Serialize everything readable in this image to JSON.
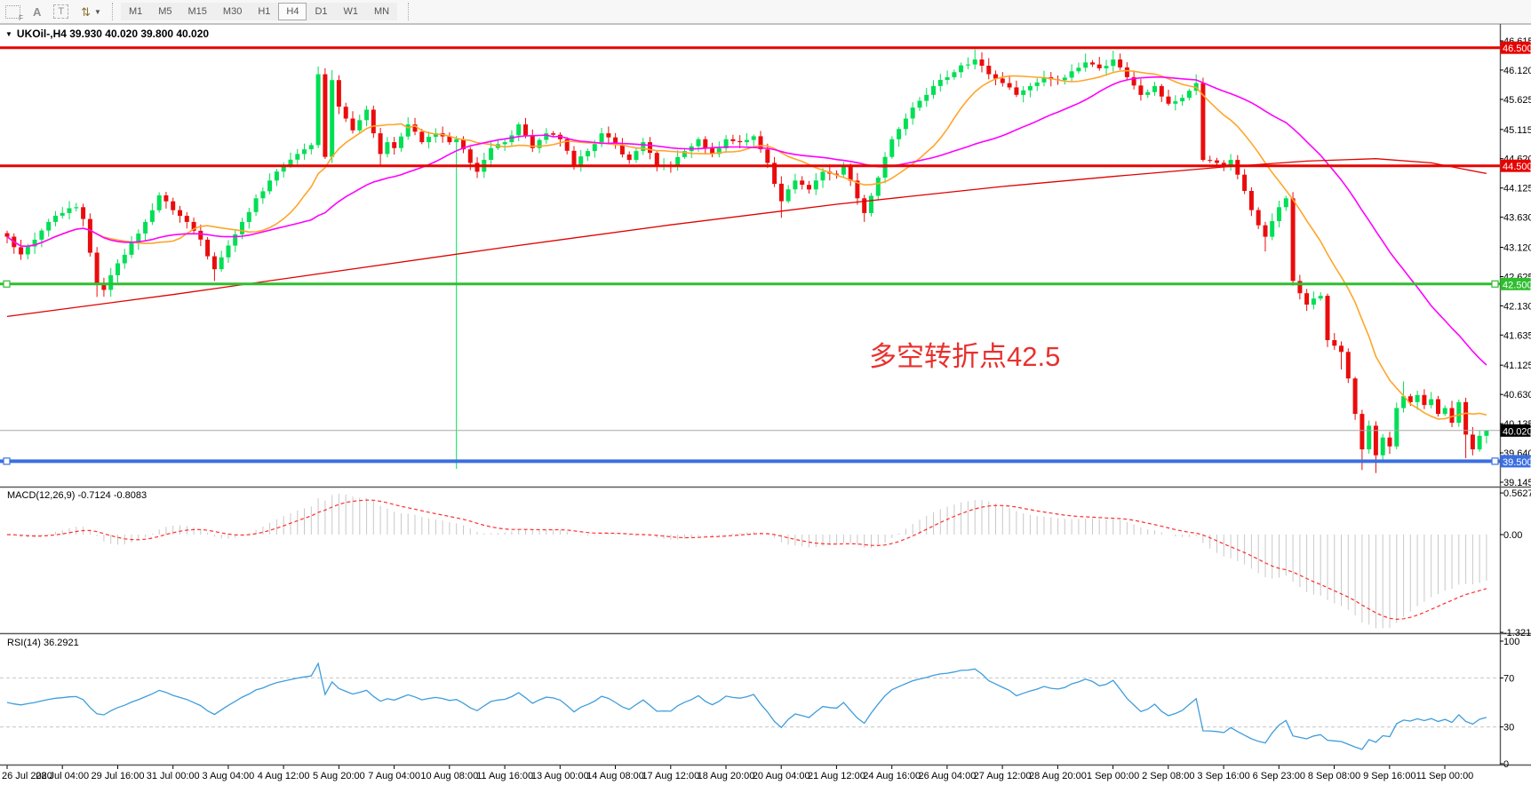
{
  "toolbar": {
    "icons": {
      "grid_f_label": "F",
      "a_label": "A",
      "t_label": "T",
      "arrows_glyph": "⇅",
      "caret": "▼"
    },
    "timeframes": [
      "M1",
      "M5",
      "M15",
      "M30",
      "H1",
      "H4",
      "D1",
      "W1",
      "MN"
    ],
    "active_timeframe": "H4"
  },
  "chart": {
    "collapse_arrow": "▼",
    "title": "UKOil-,H4  39.930 40.020 39.800 40.020",
    "annotation_text": "多空转折点42.5"
  },
  "panels": {
    "macd_label": "MACD(12,26,9) -0.7124 -0.8083",
    "rsi_label": "RSI(14) 36.2921"
  },
  "chart_data": {
    "type": "candlestick",
    "symbol": "UKOil-",
    "timeframe": "H4",
    "last_ohlc": {
      "open": 39.93,
      "high": 40.02,
      "low": 39.8,
      "close": 40.02
    },
    "bars_total": 215,
    "price_ticks": [
      "46.615",
      "46.120",
      "45.625",
      "45.115",
      "44.620",
      "44.125",
      "43.630",
      "43.120",
      "42.625",
      "42.130",
      "41.635",
      "41.125",
      "40.630",
      "40.135",
      "39.640",
      "39.145"
    ],
    "time_ticks": [
      "26 Jul 2020",
      "28 Jul 04:00",
      "29 Jul 16:00",
      "31 Jul 00:00",
      "3 Aug 04:00",
      "4 Aug 12:00",
      "5 Aug 20:00",
      "7 Aug 04:00",
      "10 Aug 08:00",
      "11 Aug 16:00",
      "13 Aug 00:00",
      "14 Aug 08:00",
      "17 Aug 12:00",
      "18 Aug 20:00",
      "20 Aug 04:00",
      "21 Aug 12:00",
      "24 Aug 16:00",
      "26 Aug 04:00",
      "27 Aug 12:00",
      "28 Aug 20:00",
      "1 Sep 00:00",
      "2 Sep 08:00",
      "3 Sep 16:00",
      "6 Sep 23:00",
      "8 Sep 08:00",
      "9 Sep 16:00",
      "11 Sep 00:00"
    ],
    "hlines": [
      {
        "price": 46.5,
        "label": "46.500",
        "color": "#e60400",
        "width": 3,
        "handles": false
      },
      {
        "price": 44.5,
        "label": "44.500",
        "color": "#e60400",
        "width": 3,
        "handles": false
      },
      {
        "price": 42.5,
        "label": "42.500",
        "color": "#2fbe2f",
        "width": 3,
        "handles": true
      },
      {
        "price": 39.5,
        "label": "39.500",
        "color": "#3b6fe0",
        "width": 4,
        "handles": true
      }
    ],
    "price_marker": {
      "price": 40.02,
      "label": "40.020",
      "line_color": "#a8a8a8",
      "badge_bg": "#000000"
    },
    "close_anchors": [
      [
        0,
        43.3
      ],
      [
        2,
        43.0
      ],
      [
        4,
        43.25
      ],
      [
        6,
        43.55
      ],
      [
        8,
        43.7
      ],
      [
        10,
        43.8
      ],
      [
        11,
        43.6
      ],
      [
        13,
        42.5
      ],
      [
        14,
        42.4
      ],
      [
        16,
        42.85
      ],
      [
        18,
        43.2
      ],
      [
        20,
        43.55
      ],
      [
        22,
        44.0
      ],
      [
        24,
        43.75
      ],
      [
        26,
        43.55
      ],
      [
        28,
        43.25
      ],
      [
        30,
        42.75
      ],
      [
        31,
        42.95
      ],
      [
        32,
        43.15
      ],
      [
        34,
        43.55
      ],
      [
        36,
        43.95
      ],
      [
        38,
        44.25
      ],
      [
        40,
        44.5
      ],
      [
        42,
        44.7
      ],
      [
        44,
        44.85
      ],
      [
        45,
        46.05
      ],
      [
        46,
        44.65
      ],
      [
        47,
        45.95
      ],
      [
        48,
        45.5
      ],
      [
        49,
        45.3
      ],
      [
        50,
        45.1
      ],
      [
        52,
        45.45
      ],
      [
        53,
        45.05
      ],
      [
        54,
        44.7
      ],
      [
        55,
        44.9
      ],
      [
        56,
        44.8
      ],
      [
        58,
        45.2
      ],
      [
        60,
        44.9
      ],
      [
        62,
        45.05
      ],
      [
        64,
        44.9
      ],
      [
        65,
        44.95
      ],
      [
        67,
        44.55
      ],
      [
        68,
        44.4
      ],
      [
        70,
        44.8
      ],
      [
        72,
        44.9
      ],
      [
        74,
        45.2
      ],
      [
        76,
        44.8
      ],
      [
        78,
        45.05
      ],
      [
        80,
        44.95
      ],
      [
        82,
        44.5
      ],
      [
        84,
        44.75
      ],
      [
        86,
        45.05
      ],
      [
        88,
        44.85
      ],
      [
        90,
        44.6
      ],
      [
        92,
        44.9
      ],
      [
        94,
        44.5
      ],
      [
        96,
        44.5
      ],
      [
        98,
        44.75
      ],
      [
        100,
        44.95
      ],
      [
        102,
        44.7
      ],
      [
        104,
        44.95
      ],
      [
        106,
        44.9
      ],
      [
        108,
        45.0
      ],
      [
        110,
        44.55
      ],
      [
        112,
        43.9
      ],
      [
        114,
        44.25
      ],
      [
        116,
        44.1
      ],
      [
        118,
        44.4
      ],
      [
        120,
        44.35
      ],
      [
        121,
        44.5
      ],
      [
        123,
        43.95
      ],
      [
        124,
        43.7
      ],
      [
        126,
        44.3
      ],
      [
        128,
        44.95
      ],
      [
        130,
        45.3
      ],
      [
        132,
        45.6
      ],
      [
        134,
        45.85
      ],
      [
        136,
        46.0
      ],
      [
        138,
        46.2
      ],
      [
        140,
        46.3
      ],
      [
        142,
        46.05
      ],
      [
        144,
        45.9
      ],
      [
        146,
        45.7
      ],
      [
        148,
        45.85
      ],
      [
        150,
        46.0
      ],
      [
        152,
        45.95
      ],
      [
        154,
        46.1
      ],
      [
        156,
        46.25
      ],
      [
        158,
        46.15
      ],
      [
        160,
        46.3
      ],
      [
        162,
        46.0
      ],
      [
        164,
        45.7
      ],
      [
        166,
        45.85
      ],
      [
        168,
        45.55
      ],
      [
        170,
        45.65
      ],
      [
        172,
        45.9
      ],
      [
        173,
        44.6
      ],
      [
        175,
        44.55
      ],
      [
        176,
        44.48
      ],
      [
        177,
        44.6
      ],
      [
        178,
        44.35
      ],
      [
        180,
        43.75
      ],
      [
        182,
        43.3
      ],
      [
        184,
        43.8
      ],
      [
        185,
        43.95
      ],
      [
        186,
        42.55
      ],
      [
        188,
        42.15
      ],
      [
        190,
        42.3
      ],
      [
        191,
        41.55
      ],
      [
        193,
        41.35
      ],
      [
        194,
        40.9
      ],
      [
        195,
        40.3
      ],
      [
        196,
        39.7
      ],
      [
        197,
        40.1
      ],
      [
        198,
        39.6
      ],
      [
        199,
        39.9
      ],
      [
        200,
        39.75
      ],
      [
        201,
        40.4
      ],
      [
        202,
        40.6
      ],
      [
        203,
        40.5
      ],
      [
        204,
        40.62
      ],
      [
        205,
        40.45
      ],
      [
        206,
        40.55
      ],
      [
        207,
        40.3
      ],
      [
        208,
        40.4
      ],
      [
        209,
        40.15
      ],
      [
        210,
        40.5
      ],
      [
        211,
        39.95
      ],
      [
        212,
        39.7
      ],
      [
        213,
        39.93
      ],
      [
        214,
        40.02
      ]
    ],
    "wick_overrides": {
      "13": {
        "low": 42.28
      },
      "30": {
        "low": 42.55
      },
      "45": {
        "high": 46.18
      },
      "47": {
        "high": 46.12
      },
      "54": {
        "low": 44.5
      },
      "65": {
        "low": 39.37
      },
      "112": {
        "low": 43.62
      },
      "124": {
        "low": 43.55
      },
      "140": {
        "high": 46.47
      },
      "156": {
        "high": 46.4
      },
      "160": {
        "high": 46.45
      },
      "172": {
        "high": 46.05
      },
      "182": {
        "low": 43.05
      },
      "193": {
        "low": 41.05
      },
      "196": {
        "low": 39.35
      },
      "198": {
        "low": 39.3
      },
      "202": {
        "high": 40.85
      },
      "211": {
        "low": 39.55
      },
      "214": {
        "open": 39.93,
        "high": 40.02,
        "low": 39.8,
        "close": 40.02
      }
    },
    "moving_averages": {
      "fast_orange_period": 13,
      "mid_magenta_period": 34,
      "slow_red_anchors": [
        [
          0,
          41.95
        ],
        [
          24,
          42.32
        ],
        [
          48,
          42.72
        ],
        [
          72,
          43.12
        ],
        [
          96,
          43.5
        ],
        [
          120,
          43.85
        ],
        [
          144,
          44.15
        ],
        [
          160,
          44.32
        ],
        [
          176,
          44.48
        ],
        [
          188,
          44.58
        ],
        [
          198,
          44.62
        ],
        [
          206,
          44.55
        ],
        [
          214,
          44.37
        ]
      ]
    },
    "macd": {
      "label": "MACD(12,26,9)",
      "main_value": -0.7124,
      "signal_value": -0.8083,
      "ticks": [
        "0.5627",
        "0.00",
        "-1.3216"
      ],
      "fast": 12,
      "slow": 26,
      "signal": 9
    },
    "rsi": {
      "label": "RSI(14)",
      "period": 14,
      "value": 36.2921,
      "ticks": [
        "100",
        "70",
        "30",
        "0"
      ],
      "levels": [
        70,
        30
      ]
    },
    "colors": {
      "bull": "#00df55",
      "bear": "#ea0c0c",
      "ma_fast": "#ffa52a",
      "ma_mid": "#ff00ff",
      "ma_slow": "#e00000",
      "macd_hist": "#c8c8c8",
      "macd_signal": "#ff2e2e",
      "rsi_line": "#3e9ddd",
      "rsi_levels": "#c8c8c8",
      "annotation": "#e8312e",
      "axis_text": "#000000",
      "panel_border": "#5a5a5a"
    }
  }
}
